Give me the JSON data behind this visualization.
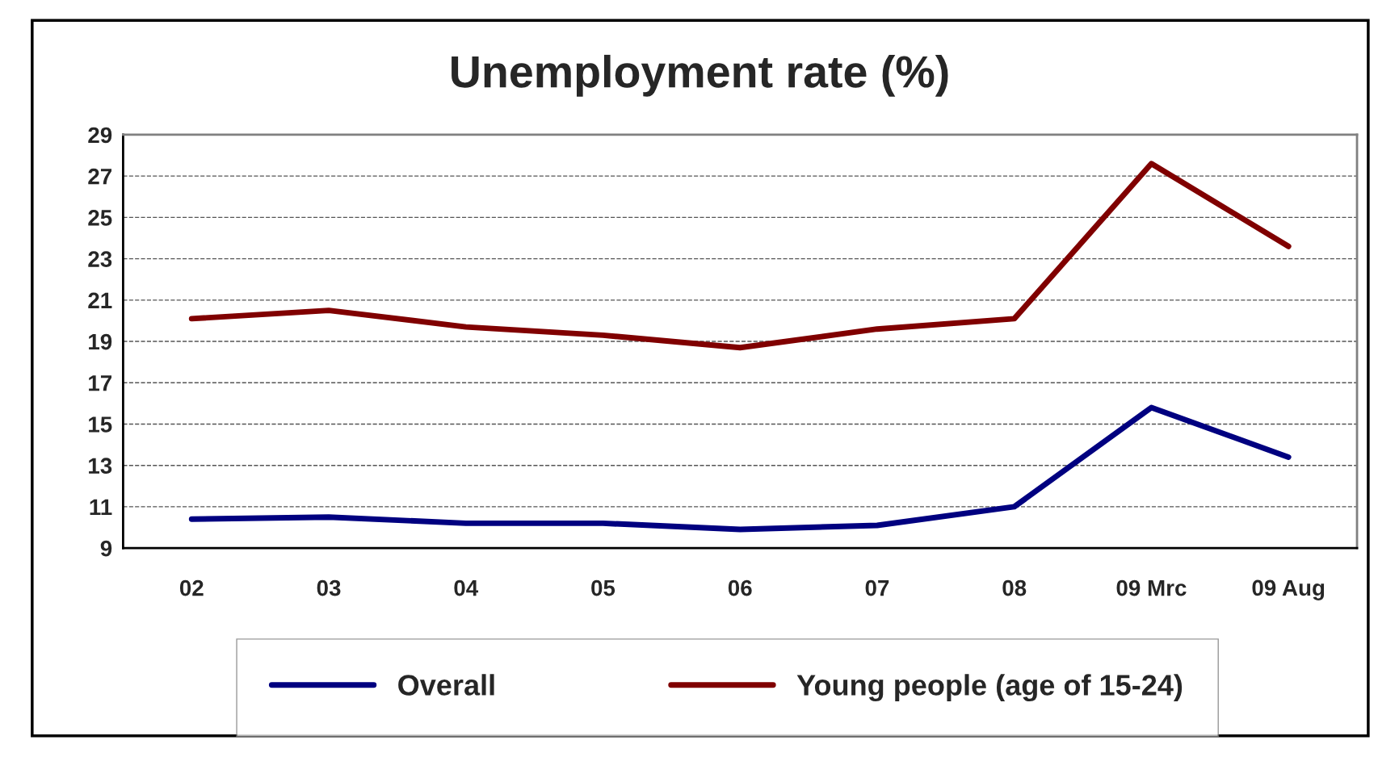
{
  "chart_data": {
    "type": "line",
    "title": "Unemployment rate (%)",
    "categories": [
      "02",
      "03",
      "04",
      "05",
      "06",
      "07",
      "08",
      "09 Mrc",
      "09 Aug"
    ],
    "series": [
      {
        "name": "Overall",
        "color": "#000080",
        "values": [
          10.4,
          10.5,
          10.2,
          10.2,
          9.9,
          10.1,
          11.0,
          15.8,
          13.4
        ]
      },
      {
        "name": "Young people (age of 15-24)",
        "color": "#800000",
        "values": [
          20.1,
          20.5,
          19.7,
          19.3,
          18.7,
          19.6,
          20.1,
          27.6,
          23.6
        ]
      }
    ],
    "ylim": [
      9,
      29
    ],
    "yticks": [
      9,
      11,
      13,
      15,
      17,
      19,
      21,
      23,
      25,
      27,
      29
    ],
    "grid": "y",
    "legend": "bottom",
    "marker": "none",
    "line_style": "solid"
  }
}
